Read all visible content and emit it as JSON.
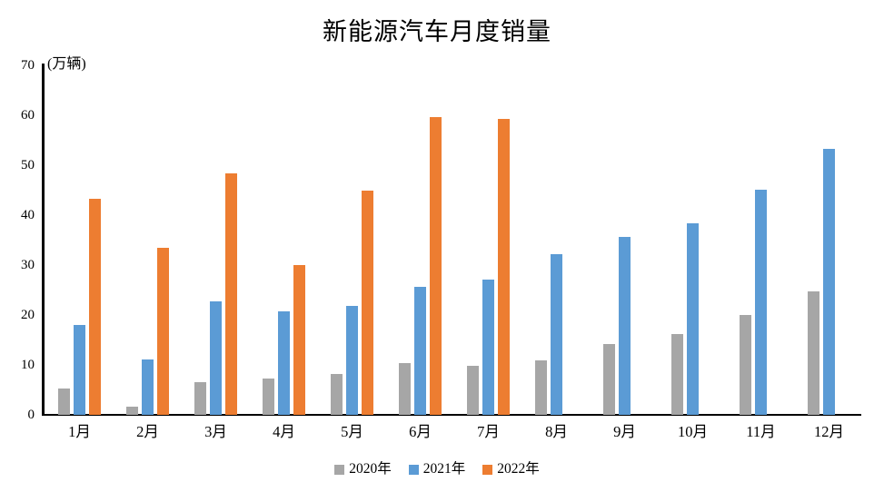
{
  "chart_data": {
    "type": "bar",
    "title": "新能源汽车月度销量",
    "ylabel": "(万辆)",
    "xlabel": "",
    "categories": [
      "1月",
      "2月",
      "3月",
      "4月",
      "5月",
      "6月",
      "7月",
      "8月",
      "9月",
      "10月",
      "11月",
      "12月"
    ],
    "series": [
      {
        "name": "2020年",
        "color": "#A6A6A6",
        "values": [
          5.3,
          1.6,
          6.5,
          7.3,
          8.2,
          10.4,
          9.8,
          10.9,
          14.1,
          16.2,
          20.0,
          24.8
        ]
      },
      {
        "name": "2021年",
        "color": "#5B9BD5",
        "values": [
          18.0,
          11.1,
          22.7,
          20.7,
          21.8,
          25.6,
          27.1,
          32.1,
          35.7,
          38.4,
          45.1,
          53.2
        ]
      },
      {
        "name": "2022年",
        "color": "#ED7D31",
        "values": [
          43.2,
          33.4,
          48.4,
          30.0,
          44.9,
          59.7,
          59.3,
          null,
          null,
          null,
          null,
          null
        ]
      }
    ],
    "ylim": [
      0,
      70
    ],
    "yticks": [
      0,
      10,
      20,
      30,
      40,
      50,
      60,
      70
    ],
    "grid": false,
    "legend_position": "bottom",
    "axis_color": "#000000",
    "background_color": "#ffffff"
  }
}
